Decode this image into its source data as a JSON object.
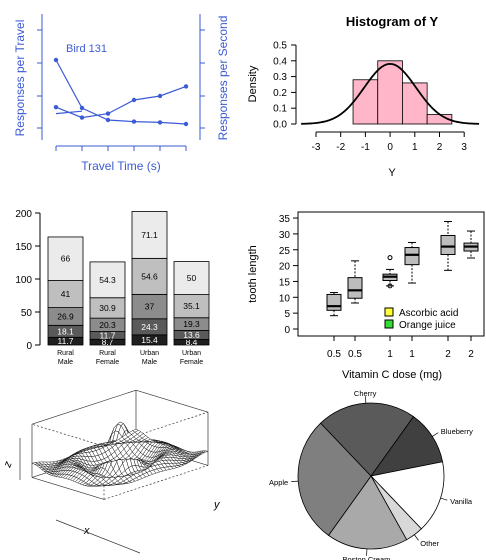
{
  "chart_data": [
    {
      "type": "line",
      "annotation": "Bird 131",
      "xlabel": "Travel Time (s)",
      "ylabel_left": "Responses per Travel",
      "ylabel_right": "Responses per Second",
      "color": "#3b5bd6",
      "series": [
        {
          "axis": "left",
          "x": [
            1,
            2,
            3,
            4,
            5,
            6
          ],
          "y": [
            0.26,
            0.13,
            0.18,
            0.35,
            0.4,
            0.52
          ]
        },
        {
          "axis": "right",
          "x": [
            1,
            2,
            3,
            4,
            5,
            6
          ],
          "y": [
            0.85,
            0.25,
            0.1,
            0.08,
            0.07,
            0.05
          ]
        }
      ],
      "connector": {
        "x": [
          1,
          2
        ],
        "y": [
          0.18,
          0.21
        ]
      }
    },
    {
      "type": "histogram",
      "title": "Histogram of Y",
      "xlabel": "Y",
      "ylabel": "Density",
      "bins": [
        -1.5,
        -0.5,
        0.5,
        1.5,
        2.5
      ],
      "density": [
        0.28,
        0.4,
        0.26,
        0.06
      ],
      "xticks": [
        "-3",
        "-2",
        "-1",
        "0",
        "1",
        "2",
        "3"
      ],
      "yticks": [
        "0.0",
        "0.1",
        "0.2",
        "0.3",
        "0.4",
        "0.5"
      ],
      "xlim": [
        -3,
        3
      ],
      "ylim": [
        0,
        0.5
      ],
      "bar_color": "#ffb6c8",
      "curve": "normal density"
    },
    {
      "type": "stacked-bar",
      "categories": [
        [
          "Rural",
          "Male"
        ],
        [
          "Rural",
          "Female"
        ],
        [
          "Urban",
          "Male"
        ],
        [
          "Urban",
          "Female"
        ]
      ],
      "series": [
        {
          "values": [
            11.7,
            8.7,
            15.4,
            8.4
          ]
        },
        {
          "values": [
            18.1,
            11.7,
            24.3,
            13.6
          ]
        },
        {
          "values": [
            26.9,
            20.3,
            37.0,
            19.3
          ]
        },
        {
          "values": [
            41.0,
            30.9,
            54.6,
            35.1
          ]
        },
        {
          "values": [
            66.0,
            54.3,
            71.1,
            50.0
          ]
        }
      ],
      "labels": [
        [
          "11.7",
          "18.1",
          "26.9",
          "41",
          "66"
        ],
        [
          "8.7",
          "11.7",
          "20.3",
          "30.9",
          "54.3"
        ],
        [
          "15.4",
          "24.3",
          "37",
          "54.6",
          "71.1"
        ],
        [
          "8.4",
          "13.6",
          "19.3",
          "35.1",
          "50"
        ]
      ],
      "colors": [
        "#1f1f1f",
        "#5a5a5a",
        "#8c8c8c",
        "#bfbfbf",
        "#ebebeb"
      ],
      "yticks": [
        "0",
        "50",
        "100",
        "150",
        "200"
      ],
      "ylim": [
        0,
        200
      ]
    },
    {
      "type": "boxplot",
      "xlabel": "Vitamin C dose (mg)",
      "ylabel": "tooth length",
      "xticks": [
        "0.5",
        "0.5",
        "1",
        "1",
        "2",
        "2"
      ],
      "yticks": [
        "0",
        "5",
        "10",
        "15",
        "20",
        "25",
        "30",
        "35"
      ],
      "ylim": [
        0,
        35
      ],
      "boxes": [
        {
          "group": "Ascorbic acid",
          "min": 4.2,
          "q1": 5.9,
          "median": 7.2,
          "q3": 10.9,
          "max": 11.5,
          "outliers": []
        },
        {
          "group": "Orange juice",
          "min": 8.2,
          "q1": 9.7,
          "median": 12.2,
          "q3": 16.2,
          "max": 21.5,
          "outliers": []
        },
        {
          "group": "Ascorbic acid",
          "min": 13.6,
          "q1": 15.3,
          "median": 16.5,
          "q3": 17.3,
          "max": 18.8,
          "outliers": [
            22.5,
            13.6
          ]
        },
        {
          "group": "Orange juice",
          "min": 14.5,
          "q1": 20.3,
          "median": 23.4,
          "q3": 25.7,
          "max": 27.3,
          "outliers": []
        },
        {
          "group": "Ascorbic acid",
          "min": 18.5,
          "q1": 23.5,
          "median": 26.0,
          "q3": 29.5,
          "max": 33.9,
          "outliers": []
        },
        {
          "group": "Orange juice",
          "min": 22.4,
          "q1": 24.6,
          "median": 26.0,
          "q3": 27.1,
          "max": 30.9,
          "outliers": []
        }
      ],
      "legend": [
        {
          "label": "Ascorbic acid",
          "color": "#ffff33"
        },
        {
          "label": "Orange juice",
          "color": "#33dd33"
        }
      ],
      "box_color": "#bdbdbd"
    },
    {
      "type": "surface",
      "xlabel": "x",
      "ylabel": "y",
      "zlabel": "z",
      "function": "sinc"
    },
    {
      "type": "pie",
      "slices": [
        {
          "label": "Blueberry",
          "value": 12,
          "color": "#404040"
        },
        {
          "label": "Vanilla",
          "value": 16,
          "color": "#ffffff"
        },
        {
          "label": "Other",
          "value": 4,
          "color": "#d8d8d8"
        },
        {
          "label": "Boston Cream",
          "value": 18,
          "color": "#a9a9a9"
        },
        {
          "label": "Apple",
          "value": 28,
          "color": "#7f7f7f"
        },
        {
          "label": "Cherry",
          "value": 22,
          "color": "#5a5a5a"
        }
      ]
    }
  ]
}
